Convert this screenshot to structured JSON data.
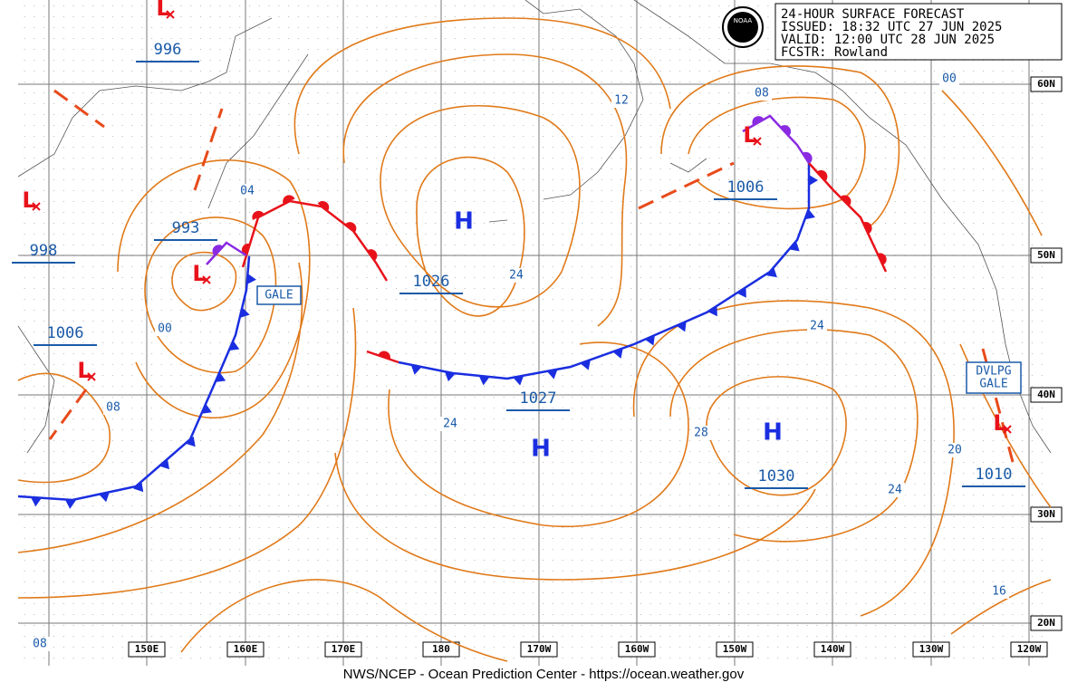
{
  "header": {
    "lines": [
      "24-HOUR SURFACE FORECAST",
      "ISSUED: 18:32 UTC 27 JUN 2025",
      "VALID: 12:00 UTC 28 JUN 2025",
      "FCSTR:  Rowland"
    ]
  },
  "logo": "NOAA",
  "footer": "NWS/NCEP - Ocean Prediction Center - https://ocean.weather.gov",
  "longitude_labels": [
    "150E",
    "160E",
    "170E",
    "180",
    "170W",
    "160W",
    "150W",
    "140W",
    "130W",
    "120W"
  ],
  "latitude_labels": [
    "60N",
    "50N",
    "40N",
    "30N",
    "20N"
  ],
  "central_pressures": [
    "996",
    "993",
    "998",
    "1006",
    "1026",
    "1027",
    "1006",
    "1030",
    "1010"
  ],
  "isobar_labels": [
    "04",
    "00",
    "08",
    "24",
    "24",
    "12",
    "08",
    "00",
    "24",
    "28",
    "20",
    "24",
    "16",
    "08"
  ],
  "high": "H",
  "low": "L",
  "warnings": {
    "gale": "GALE",
    "developing_gale": [
      "DVLPG",
      "GALE"
    ]
  }
}
